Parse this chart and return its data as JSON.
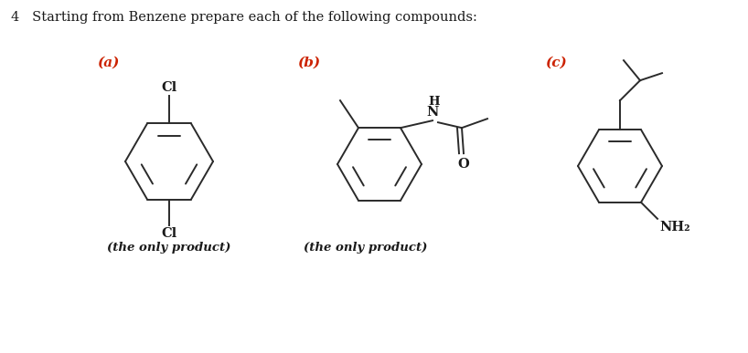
{
  "title": "4   Starting from Benzene prepare each of the following compounds:",
  "title_color": "#1a1a1a",
  "title_fontsize": 10.5,
  "background_color": "#ffffff",
  "label_a": "(a)",
  "label_b": "(b)",
  "label_c": "(c)",
  "label_color": "#cc2200",
  "label_fontsize": 11,
  "note_a": "(the only product)",
  "note_b": "(the only product)",
  "note_fontsize": 9.5,
  "line_color": "#2a2a2a",
  "line_width": 1.4,
  "text_color": "#1a1a1a"
}
